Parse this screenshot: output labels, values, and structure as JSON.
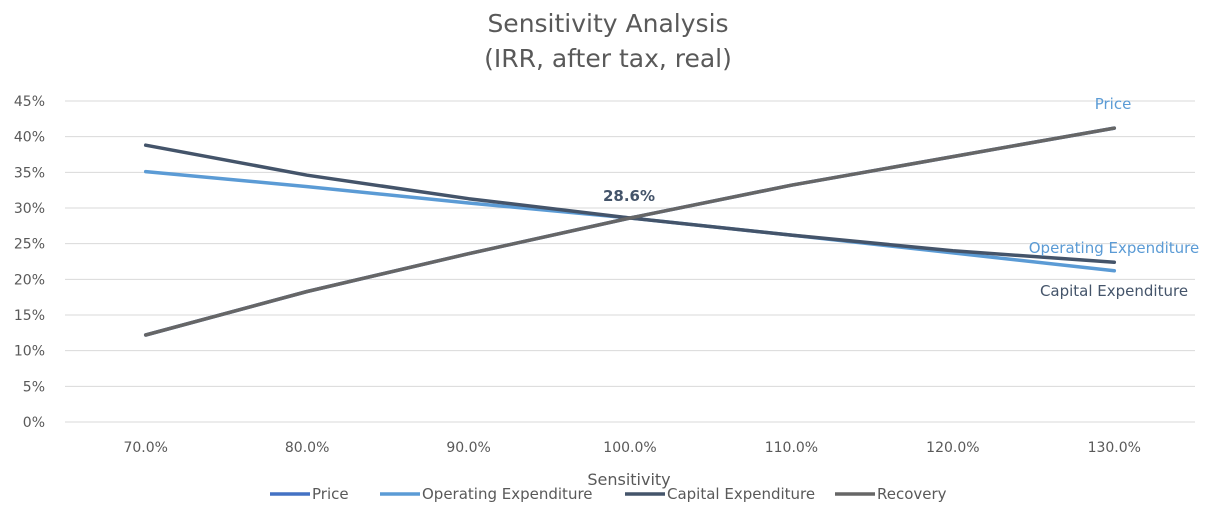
{
  "chart_data": {
    "type": "line",
    "title": "Sensitivity Analysis",
    "subtitle": "(IRR, after tax, real)",
    "xlabel": "Sensitivity",
    "ylabel": "",
    "categories": [
      "70.0%",
      "80.0%",
      "90.0%",
      "100.0%",
      "110.0%",
      "120.0%",
      "130.0%"
    ],
    "y_ticks": [
      "0%",
      "5%",
      "10%",
      "15%",
      "20%",
      "25%",
      "30%",
      "35%",
      "40%",
      "45%"
    ],
    "ylim": [
      0,
      45
    ],
    "grid": true,
    "legend_position": "bottom",
    "series": [
      {
        "name": "Price",
        "color": "#4472C4",
        "values": [
          12.2,
          18.3,
          23.6,
          28.6,
          33.2,
          37.2,
          41.2
        ]
      },
      {
        "name": "Operating Expenditure",
        "color": "#5B9BD5",
        "values": [
          35.1,
          33.0,
          30.7,
          28.6,
          26.2,
          23.7,
          21.2
        ]
      },
      {
        "name": "Capital Expenditure",
        "color": "#44546A",
        "values": [
          38.8,
          34.6,
          31.3,
          28.6,
          26.2,
          24.0,
          22.4
        ]
      },
      {
        "name": "Recovery",
        "color": "#666666",
        "values": [
          12.2,
          18.3,
          23.6,
          28.6,
          33.2,
          37.2,
          41.2
        ]
      }
    ],
    "annotations": [
      {
        "text": "Price",
        "color": "#5B9BD5"
      },
      {
        "text": "Operating Expenditure",
        "color": "#5B9BD5"
      },
      {
        "text": "Capital Expenditure",
        "color": "#44546A"
      }
    ],
    "data_label": {
      "text": "28.6%",
      "category": "100.0%",
      "value": 28.6
    }
  }
}
